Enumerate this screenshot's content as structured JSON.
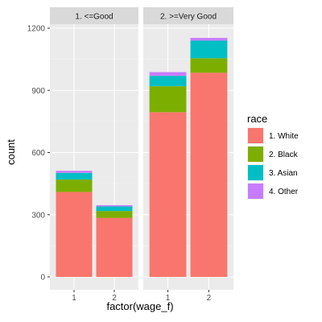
{
  "chart_data": {
    "type": "bar",
    "stacked": true,
    "xlabel": "factor(wage_f)",
    "ylabel": "count",
    "ylim": [
      0,
      1200
    ],
    "yticks": [
      0,
      300,
      600,
      900,
      1200
    ],
    "categories": [
      "1",
      "2"
    ],
    "legend": {
      "title": "race",
      "position": "right",
      "entries": [
        {
          "label": "1. White",
          "color": "#F8766D"
        },
        {
          "label": "2. Black",
          "color": "#7CAE00"
        },
        {
          "label": "3. Asian",
          "color": "#00BFC4"
        },
        {
          "label": "4. Other",
          "color": "#C77CFF"
        }
      ]
    },
    "facets": [
      {
        "label": "1. <=Good",
        "series": [
          {
            "name": "1. White",
            "values": [
              410,
              285
            ]
          },
          {
            "name": "2. Black",
            "values": [
              60,
              33
            ]
          },
          {
            "name": "3. Asian",
            "values": [
              32,
              22
            ]
          },
          {
            "name": "4. Other",
            "values": [
              10,
              6
            ]
          }
        ]
      },
      {
        "label": "2. >=Very Good",
        "series": [
          {
            "name": "1. White",
            "values": [
              795,
              985
            ]
          },
          {
            "name": "2. Black",
            "values": [
              125,
              70
            ]
          },
          {
            "name": "3. Asian",
            "values": [
              50,
              85
            ]
          },
          {
            "name": "4. Other",
            "values": [
              18,
              13
            ]
          }
        ]
      }
    ]
  }
}
